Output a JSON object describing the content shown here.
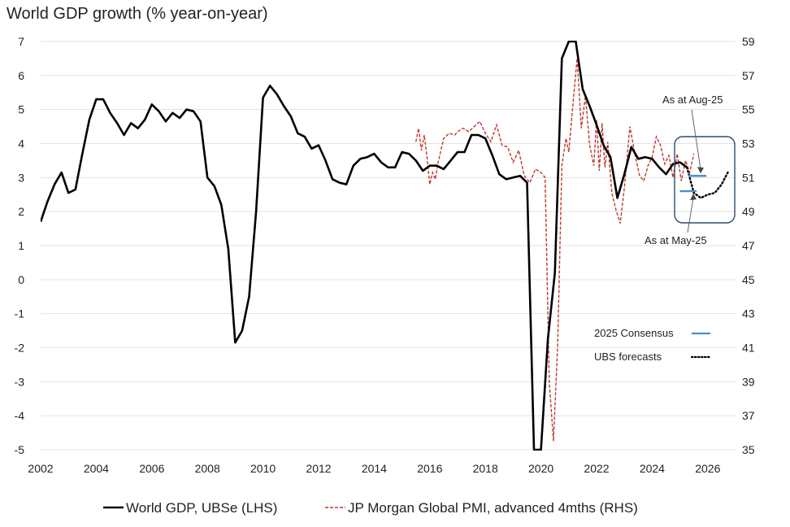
{
  "chart_data": {
    "type": "line",
    "title": "World GDP growth (% year-on-year)",
    "xlabel": "",
    "ylabel": "",
    "xlim": [
      2002,
      2027
    ],
    "ylim": [
      -5,
      7
    ],
    "y2lim": [
      35,
      59
    ],
    "x_ticks": [
      "2002",
      "2004",
      "2006",
      "2008",
      "2010",
      "2012",
      "2014",
      "2016",
      "2018",
      "2020",
      "2022",
      "2024",
      "2026"
    ],
    "y_ticks": [
      "7",
      "6",
      "5",
      "4",
      "3",
      "2",
      "1",
      "0",
      "-1",
      "-2",
      "-3",
      "-4",
      "-5"
    ],
    "y2_ticks": [
      "59",
      "57",
      "55",
      "53",
      "51",
      "49",
      "47",
      "45",
      "43",
      "41",
      "39",
      "37",
      "35"
    ],
    "grid": "horizontal",
    "legend_position": "bottom",
    "series": [
      {
        "name": "World GDP, UBSe (LHS)",
        "axis": "left",
        "color": "#000000",
        "style": "solid",
        "x": [
          2002.0,
          2002.25,
          2002.5,
          2002.75,
          2003.0,
          2003.25,
          2003.5,
          2003.75,
          2004.0,
          2004.25,
          2004.5,
          2004.75,
          2005.0,
          2005.25,
          2005.5,
          2005.75,
          2006.0,
          2006.25,
          2006.5,
          2006.75,
          2007.0,
          2007.25,
          2007.5,
          2007.75,
          2008.0,
          2008.25,
          2008.5,
          2008.75,
          2009.0,
          2009.25,
          2009.5,
          2009.75,
          2010.0,
          2010.25,
          2010.5,
          2010.75,
          2011.0,
          2011.25,
          2011.5,
          2011.75,
          2012.0,
          2012.25,
          2012.5,
          2012.75,
          2013.0,
          2013.25,
          2013.5,
          2013.75,
          2014.0,
          2014.25,
          2014.5,
          2014.75,
          2015.0,
          2015.25,
          2015.5,
          2015.75,
          2016.0,
          2016.25,
          2016.5,
          2016.75,
          2017.0,
          2017.25,
          2017.5,
          2017.75,
          2018.0,
          2018.25,
          2018.5,
          2018.75,
          2019.0,
          2019.25,
          2019.5,
          2019.75,
          2020.0,
          2020.25,
          2020.5,
          2020.75,
          2021.0,
          2021.25,
          2021.5,
          2021.75,
          2022.0,
          2022.25,
          2022.5,
          2022.75,
          2023.0,
          2023.25,
          2023.5,
          2023.75,
          2024.0,
          2024.25,
          2024.5,
          2024.75,
          2025.0,
          2025.25
        ],
        "values": [
          1.7,
          2.3,
          2.8,
          3.15,
          2.55,
          2.65,
          3.7,
          4.7,
          5.3,
          5.3,
          4.9,
          4.6,
          4.25,
          4.6,
          4.45,
          4.7,
          5.15,
          4.95,
          4.65,
          4.9,
          4.75,
          5.0,
          4.95,
          4.65,
          3.0,
          2.75,
          2.2,
          0.9,
          -1.85,
          -1.5,
          -0.5,
          2.0,
          5.35,
          5.7,
          5.45,
          5.1,
          4.8,
          4.3,
          4.2,
          3.85,
          3.95,
          3.5,
          2.95,
          2.85,
          2.8,
          3.35,
          3.55,
          3.6,
          3.7,
          3.45,
          3.3,
          3.3,
          3.75,
          3.7,
          3.5,
          3.2,
          3.35,
          3.35,
          3.25,
          3.5,
          3.75,
          3.75,
          4.25,
          4.25,
          4.15,
          3.65,
          3.1,
          2.95,
          3.0,
          3.05,
          2.85,
          -5.0,
          -5.0,
          -1.75,
          0.2,
          6.5,
          7.0,
          7.0,
          5.6,
          5.1,
          4.55,
          3.95,
          3.6,
          2.4,
          3.1,
          3.9,
          3.55,
          3.6,
          3.55,
          3.3,
          3.1,
          3.4,
          3.45,
          3.3
        ]
      },
      {
        "name": "JP Morgan Global PMI, advanced 4mths (RHS)",
        "axis": "right",
        "color": "#c0392b",
        "style": "dashed",
        "x": [
          2015.5,
          2015.6,
          2015.7,
          2015.8,
          2015.9,
          2016.0,
          2016.1,
          2016.2,
          2016.3,
          2016.5,
          2016.7,
          2016.9,
          2017.0,
          2017.2,
          2017.4,
          2017.6,
          2017.8,
          2018.0,
          2018.2,
          2018.4,
          2018.6,
          2018.8,
          2019.0,
          2019.2,
          2019.4,
          2019.6,
          2019.8,
          2020.0,
          2020.15,
          2020.3,
          2020.45,
          2020.6,
          2020.75,
          2020.9,
          2021.0,
          2021.15,
          2021.3,
          2021.45,
          2021.6,
          2021.75,
          2021.9,
          2022.0,
          2022.1,
          2022.2,
          2022.3,
          2022.4,
          2022.55,
          2022.7,
          2022.85,
          2023.0,
          2023.2,
          2023.4,
          2023.55,
          2023.7,
          2023.85,
          2024.0,
          2024.15,
          2024.3,
          2024.45,
          2024.6,
          2024.75,
          2024.9,
          2025.05,
          2025.2,
          2025.35,
          2025.5
        ],
        "values": [
          53.1,
          53.9,
          52.6,
          53.5,
          52.2,
          50.6,
          51.3,
          50.9,
          51.9,
          53.3,
          53.6,
          53.5,
          53.7,
          53.9,
          53.7,
          54.0,
          54.3,
          53.6,
          53.1,
          54.1,
          52.9,
          52.8,
          51.9,
          52.6,
          51.1,
          50.7,
          51.5,
          51.3,
          51.0,
          38.9,
          35.5,
          41.1,
          51.7,
          53.3,
          52.5,
          55.3,
          58.0,
          53.9,
          55.8,
          52.9,
          51.7,
          54.4,
          51.4,
          54.2,
          51.6,
          53.1,
          50.1,
          49.1,
          48.3,
          50.4,
          54.0,
          52.2,
          51.1,
          50.8,
          51.7,
          52.2,
          53.4,
          52.9,
          51.8,
          52.3,
          51.0,
          52.4,
          50.8,
          52.0,
          51.3,
          52.4
        ]
      },
      {
        "name": "UBS forecasts",
        "axis": "left",
        "color": "#000000",
        "style": "dotted",
        "x": [
          2025.25,
          2025.5,
          2025.75,
          2026.0,
          2026.25,
          2026.5,
          2026.75
        ],
        "values": [
          3.3,
          2.55,
          2.4,
          2.5,
          2.55,
          2.8,
          3.2
        ]
      }
    ],
    "consensus_markers": [
      {
        "label": "As at Aug-25",
        "x_start": 2025.3,
        "x_end": 2025.95,
        "value": 3.05
      },
      {
        "label": "As at May-25",
        "x_start": 2025.0,
        "x_end": 2025.6,
        "value": 2.6
      }
    ],
    "inset_legend": [
      {
        "label": "2025 Consensus",
        "style": "solid",
        "color": "#4a90c8"
      },
      {
        "label": "UBS forecasts",
        "style": "dotted",
        "color": "#000000"
      }
    ],
    "highlight_box_color": "#2e4a6e"
  }
}
